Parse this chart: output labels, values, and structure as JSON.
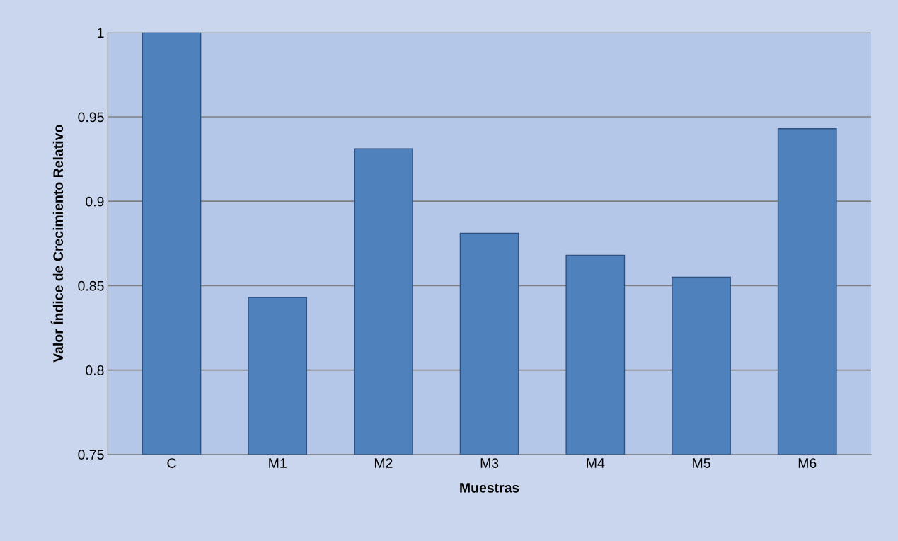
{
  "chart_data": {
    "type": "bar",
    "xlabel": "Muestras",
    "ylabel": "Valor Índice de Crecimiento Relativo",
    "categories": [
      "C",
      "M1",
      "M2",
      "M3",
      "M4",
      "M5",
      "M6"
    ],
    "values": [
      1.0,
      0.843,
      0.931,
      0.881,
      0.868,
      0.855,
      0.943
    ],
    "color": "#4f81bd",
    "ylim": [
      0.75,
      1.0
    ],
    "yticks": [
      0.75,
      0.8,
      0.85,
      0.9,
      0.95,
      1
    ],
    "grid": "y"
  }
}
